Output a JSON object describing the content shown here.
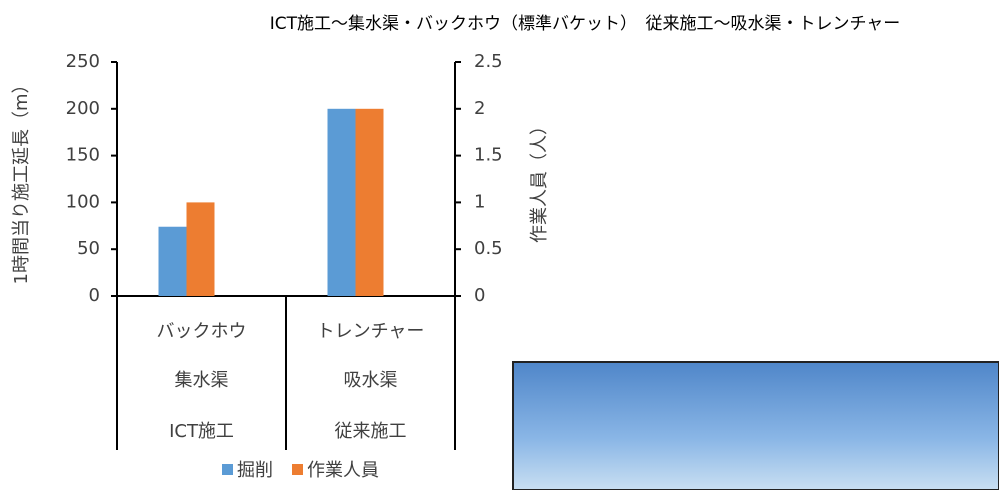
{
  "chart_data": {
    "type": "bar",
    "title": "ICT施工～集水渠・バックホウ（標準バケット）　従来施工～吸水渠・トレンチャー",
    "y_label": "1時間当り施工延長（m）",
    "y2_label": "作業人員（人）",
    "categories": [
      [
        "バックホウ",
        "集水渠",
        "ICT施工"
      ],
      [
        "トレンチャー",
        "吸水渠",
        "従来施工"
      ]
    ],
    "series": [
      {
        "name": "掘削",
        "color": "#5b9bd5",
        "values": [
          74,
          200
        ]
      },
      {
        "name": "作業人員",
        "color": "#ed7d31",
        "values": [
          1,
          2
        ],
        "axis": "y2"
      }
    ],
    "ylim": [
      0,
      250
    ],
    "yticks": [
      0,
      50,
      100,
      150,
      200,
      250
    ],
    "y2lim": [
      0,
      2.5
    ],
    "y2ticks": [
      0,
      0.5,
      1,
      1.5,
      2,
      2.5
    ],
    "legend": "bottom"
  }
}
